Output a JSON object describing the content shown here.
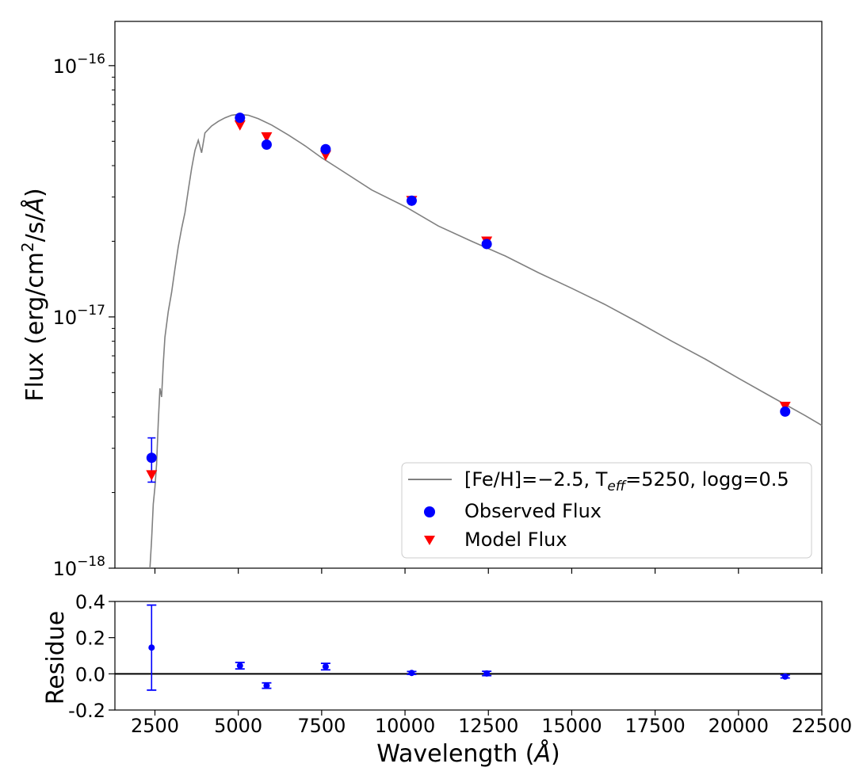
{
  "chart_data": [
    {
      "type": "line+scatter",
      "panel": "top",
      "yscale": "log",
      "ylabel": "Flux (erg/cm²/s/Å)",
      "xlim": [
        1300,
        22500
      ],
      "ylim": [
        1e-18,
        1.5e-16
      ],
      "yticks": [
        {
          "value": 1e-18,
          "base": "10",
          "exp": "−18"
        },
        {
          "value": 1e-17,
          "base": "10",
          "exp": "−17"
        },
        {
          "value": 1e-16,
          "base": "10",
          "exp": "−16"
        }
      ],
      "model_spectrum": {
        "name": "[Fe/H]=−2.5, T_eff=5250, logg=0.5",
        "color": "#808080",
        "x": [
          2350,
          2400,
          2450,
          2500,
          2550,
          2600,
          2650,
          2700,
          2750,
          2800,
          2900,
          3000,
          3100,
          3200,
          3300,
          3400,
          3500,
          3600,
          3700,
          3800,
          3900,
          4000,
          4200,
          4400,
          4600,
          4800,
          5000,
          5300,
          5600,
          6000,
          6500,
          7000,
          7500,
          8000,
          9000,
          10000,
          11000,
          12000,
          13000,
          14000,
          15000,
          16000,
          17000,
          18000,
          19000,
          20000,
          21000,
          22000,
          22500
        ],
        "y": [
          1e-18,
          1.3e-18,
          1.8e-18,
          2.1e-18,
          2.6e-18,
          3.8e-18,
          5.2e-18,
          4.8e-18,
          6.5e-18,
          8.3e-18,
          1.05e-17,
          1.25e-17,
          1.55e-17,
          1.9e-17,
          2.25e-17,
          2.6e-17,
          3.2e-17,
          3.9e-17,
          4.6e-17,
          5.05e-17,
          4.5e-17,
          5.4e-17,
          5.75e-17,
          6e-17,
          6.2e-17,
          6.35e-17,
          6.4e-17,
          6.35e-17,
          6.15e-17,
          5.8e-17,
          5.3e-17,
          4.8e-17,
          4.3e-17,
          3.9e-17,
          3.2e-17,
          2.75e-17,
          2.3e-17,
          2e-17,
          1.75e-17,
          1.5e-17,
          1.3e-17,
          1.12e-17,
          9.5e-18,
          8e-18,
          6.8e-18,
          5.7e-18,
          4.8e-18,
          4.05e-18,
          3.7e-18
        ]
      },
      "observed_flux": {
        "name": "Observed Flux",
        "color": "#0000ff",
        "x": [
          2400,
          5050,
          5850,
          7620,
          10200,
          12450,
          21400
        ],
        "y": [
          2.75e-18,
          6.2e-17,
          4.85e-17,
          4.65e-17,
          2.9e-17,
          1.95e-17,
          4.2e-18
        ],
        "yerr_low": [
          2.2e-18,
          null,
          null,
          null,
          null,
          null,
          null
        ],
        "yerr_high": [
          3.3e-18,
          null,
          null,
          null,
          null,
          null,
          null
        ]
      },
      "model_flux": {
        "name": "Model Flux",
        "color": "#ff0000",
        "x": [
          2400,
          5050,
          5850,
          7620,
          10200,
          12450,
          21400
        ],
        "y": [
          2.35e-18,
          5.8e-17,
          5.2e-17,
          4.4e-17,
          2.9e-17,
          2e-17,
          4.4e-18
        ]
      },
      "legend_position": "lower-right"
    },
    {
      "type": "scatter",
      "panel": "bottom",
      "xlabel": "Wavelength (Å)",
      "ylabel": "Residue",
      "xlim": [
        1300,
        22500
      ],
      "ylim": [
        -0.2,
        0.4
      ],
      "xticks": [
        2500,
        5000,
        7500,
        10000,
        12500,
        15000,
        17500,
        20000,
        22500
      ],
      "xtick_labels": [
        "2500",
        "5000",
        "7500",
        "10000",
        "12500",
        "15000",
        "17500",
        "20000",
        "22500"
      ],
      "yticks": [
        -0.2,
        0.0,
        0.2,
        0.4
      ],
      "ytick_labels": [
        "-0.2",
        "0.0",
        "0.2",
        "0.4"
      ],
      "reference_line": 0.0,
      "residue": {
        "color": "#0000ff",
        "x": [
          2400,
          5050,
          5850,
          7620,
          10200,
          12450,
          21400
        ],
        "y": [
          0.145,
          0.045,
          -0.065,
          0.04,
          0.005,
          0.002,
          -0.015
        ],
        "err": [
          0.235,
          0.018,
          0.015,
          0.018,
          0.008,
          0.012,
          0.008
        ]
      }
    }
  ],
  "legend": {
    "line_label_prefix": "[Fe/H]=−2.5, T",
    "line_label_sub": "eff",
    "line_label_suffix": "=5250, logg=0.5",
    "observed_label": "Observed Flux",
    "model_label": "Model Flux"
  },
  "labels": {
    "top_ylabel": "Flux (erg/cm",
    "top_ylabel_sup": "2",
    "top_ylabel_tail": "/s/",
    "top_ylabel_unit": "Å",
    "top_ylabel_close": ")",
    "bottom_ylabel": "Residue",
    "xlabel": "Wavelength (",
    "xlabel_unit": "Å",
    "xlabel_close": ")"
  }
}
